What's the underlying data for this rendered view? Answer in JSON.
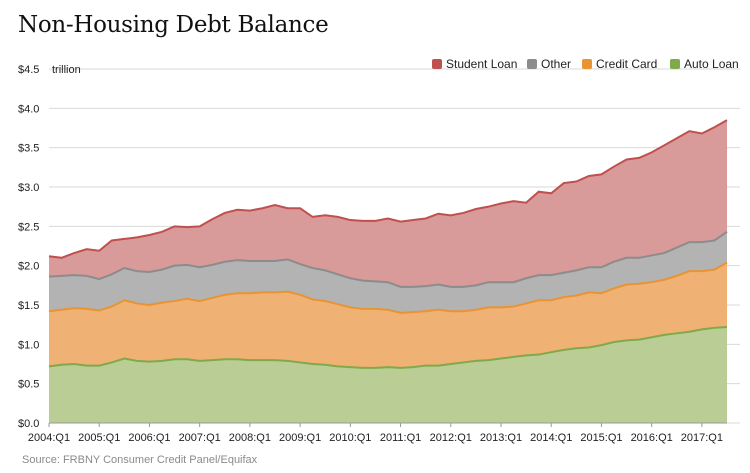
{
  "title": "Non-Housing Debt Balance",
  "source": "Source: FRBNY Consumer Credit Panel/Equifax",
  "chart_data": {
    "type": "area",
    "stacked": true,
    "title": "Non-Housing Debt Balance",
    "y_unit_label": "trillion",
    "ylim": [
      0,
      4.5
    ],
    "y_ticks": [
      0,
      0.5,
      1.0,
      1.5,
      2.0,
      2.5,
      3.0,
      3.5,
      4.0,
      4.5
    ],
    "y_tick_labels": [
      "$0.0",
      "$0.5",
      "$1.0",
      "$1.5",
      "$2.0",
      "$2.5",
      "$3.0",
      "$3.5",
      "$4.0",
      "$4.5"
    ],
    "x_tick_labels": [
      "2004:Q1",
      "2005:Q1",
      "2006:Q1",
      "2007:Q1",
      "2008:Q1",
      "2009:Q1",
      "2010:Q1",
      "2011:Q1",
      "2012:Q1",
      "2013:Q1",
      "2014:Q1",
      "2015:Q1",
      "2016:Q1",
      "2017:Q1"
    ],
    "legend_position": "top-right",
    "grid": "horizontal",
    "x": [
      "2004:Q1",
      "2004:Q2",
      "2004:Q3",
      "2004:Q4",
      "2005:Q1",
      "2005:Q2",
      "2005:Q3",
      "2005:Q4",
      "2006:Q1",
      "2006:Q2",
      "2006:Q3",
      "2006:Q4",
      "2007:Q1",
      "2007:Q2",
      "2007:Q3",
      "2007:Q4",
      "2008:Q1",
      "2008:Q2",
      "2008:Q3",
      "2008:Q4",
      "2009:Q1",
      "2009:Q2",
      "2009:Q3",
      "2009:Q4",
      "2010:Q1",
      "2010:Q2",
      "2010:Q3",
      "2010:Q4",
      "2011:Q1",
      "2011:Q2",
      "2011:Q3",
      "2011:Q4",
      "2012:Q1",
      "2012:Q2",
      "2012:Q3",
      "2012:Q4",
      "2013:Q1",
      "2013:Q2",
      "2013:Q3",
      "2013:Q4",
      "2014:Q1",
      "2014:Q2",
      "2014:Q3",
      "2014:Q4",
      "2015:Q1",
      "2015:Q2",
      "2015:Q3",
      "2015:Q4",
      "2016:Q1",
      "2016:Q2",
      "2016:Q3",
      "2016:Q4",
      "2017:Q1",
      "2017:Q2",
      "2017:Q3"
    ],
    "series": [
      {
        "name": "Auto Loan",
        "color": "#7fa94a",
        "fill": "#b9cd94",
        "values": [
          0.72,
          0.74,
          0.75,
          0.73,
          0.73,
          0.77,
          0.82,
          0.79,
          0.78,
          0.79,
          0.81,
          0.81,
          0.79,
          0.8,
          0.81,
          0.81,
          0.8,
          0.8,
          0.8,
          0.79,
          0.77,
          0.75,
          0.74,
          0.72,
          0.71,
          0.7,
          0.7,
          0.71,
          0.7,
          0.71,
          0.73,
          0.73,
          0.75,
          0.77,
          0.79,
          0.8,
          0.82,
          0.84,
          0.86,
          0.87,
          0.9,
          0.93,
          0.95,
          0.96,
          0.99,
          1.03,
          1.05,
          1.06,
          1.09,
          1.12,
          1.14,
          1.16,
          1.19,
          1.21,
          1.22
        ]
      },
      {
        "name": "Credit Card",
        "color": "#e89432",
        "fill": "#f0b274",
        "values": [
          0.7,
          0.7,
          0.71,
          0.72,
          0.7,
          0.71,
          0.74,
          0.73,
          0.72,
          0.74,
          0.74,
          0.77,
          0.76,
          0.79,
          0.82,
          0.84,
          0.85,
          0.86,
          0.86,
          0.88,
          0.86,
          0.82,
          0.81,
          0.79,
          0.76,
          0.75,
          0.75,
          0.73,
          0.7,
          0.7,
          0.69,
          0.71,
          0.67,
          0.65,
          0.65,
          0.67,
          0.65,
          0.64,
          0.66,
          0.69,
          0.66,
          0.67,
          0.67,
          0.7,
          0.66,
          0.68,
          0.71,
          0.71,
          0.7,
          0.7,
          0.73,
          0.77,
          0.74,
          0.74,
          0.82
        ]
      },
      {
        "name": "Other",
        "color": "#8c8c8c",
        "fill": "#b3b3b3",
        "values": [
          0.44,
          0.43,
          0.42,
          0.42,
          0.4,
          0.41,
          0.41,
          0.41,
          0.42,
          0.42,
          0.45,
          0.43,
          0.43,
          0.42,
          0.42,
          0.42,
          0.41,
          0.4,
          0.4,
          0.41,
          0.39,
          0.4,
          0.39,
          0.38,
          0.37,
          0.36,
          0.35,
          0.35,
          0.33,
          0.32,
          0.32,
          0.32,
          0.31,
          0.31,
          0.31,
          0.32,
          0.32,
          0.31,
          0.32,
          0.32,
          0.32,
          0.31,
          0.32,
          0.32,
          0.33,
          0.34,
          0.34,
          0.33,
          0.34,
          0.34,
          0.36,
          0.37,
          0.37,
          0.37,
          0.39
        ]
      },
      {
        "name": "Student Loan",
        "color": "#c0504d",
        "fill": "#d99a9a",
        "values": [
          0.26,
          0.23,
          0.28,
          0.34,
          0.36,
          0.43,
          0.37,
          0.43,
          0.47,
          0.48,
          0.5,
          0.48,
          0.52,
          0.58,
          0.62,
          0.64,
          0.64,
          0.67,
          0.71,
          0.65,
          0.71,
          0.65,
          0.7,
          0.73,
          0.74,
          0.76,
          0.77,
          0.81,
          0.83,
          0.85,
          0.86,
          0.9,
          0.91,
          0.94,
          0.97,
          0.96,
          1.0,
          1.03,
          0.96,
          1.06,
          1.04,
          1.14,
          1.13,
          1.16,
          1.18,
          1.21,
          1.25,
          1.27,
          1.31,
          1.37,
          1.39,
          1.41,
          1.38,
          1.44,
          1.42
        ]
      }
    ]
  }
}
